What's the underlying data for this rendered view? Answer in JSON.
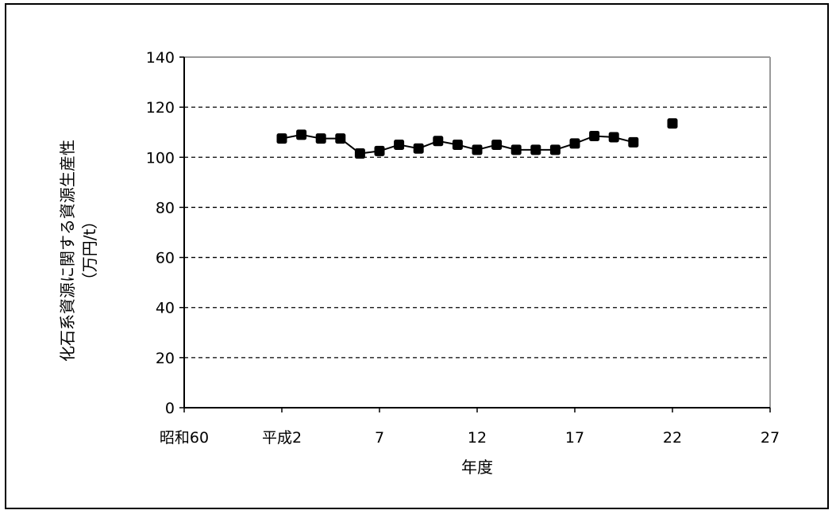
{
  "chart_data": {
    "type": "line",
    "xlabel": "年度",
    "ylabel_line1": "化石系資源に関する資源生産性",
    "ylabel_line2": "（万円/t）",
    "xlim": [
      0,
      30
    ],
    "ylim": [
      0,
      140
    ],
    "y_ticks": [
      0,
      20,
      40,
      60,
      80,
      100,
      120,
      140
    ],
    "x_ticks": [
      {
        "x": 0,
        "label": "昭和60"
      },
      {
        "x": 5,
        "label": "平成2"
      },
      {
        "x": 10,
        "label": "7"
      },
      {
        "x": 15,
        "label": "12"
      },
      {
        "x": 20,
        "label": "17"
      },
      {
        "x": 25,
        "label": "22"
      },
      {
        "x": 30,
        "label": "27"
      }
    ],
    "grid": "horizontal-dashed",
    "series": [
      {
        "x": [
          5,
          6,
          7,
          8,
          9,
          10,
          11,
          12,
          13,
          14,
          15,
          16,
          17,
          18,
          19,
          20,
          21,
          22,
          23,
          24,
          25
        ],
        "values": [
          107.5,
          109,
          107.5,
          107.5,
          101.5,
          102.5,
          105,
          103.5,
          106.5,
          105,
          103,
          105,
          103,
          103,
          103,
          105.5,
          108.5,
          108,
          106,
          null,
          113.5
        ],
        "color": "#000000",
        "marker": "square"
      }
    ]
  }
}
